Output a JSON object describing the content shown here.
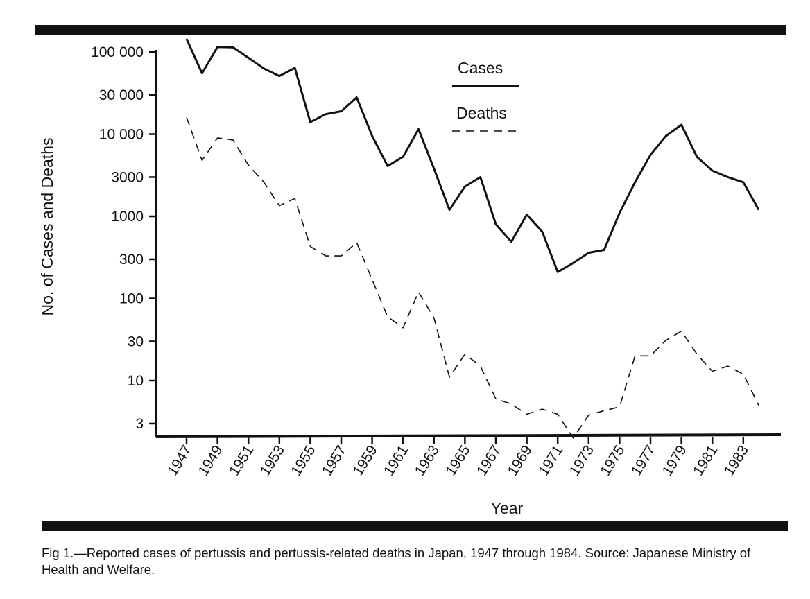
{
  "chart_data": {
    "type": "line",
    "yscale": "log",
    "ylim": [
      2,
      130000
    ],
    "xlabel": "Year",
    "ylabel": "No. of Cases and Deaths",
    "y_ticks": [
      {
        "value": 100000,
        "label": "100 000"
      },
      {
        "value": 30000,
        "label": "30 000"
      },
      {
        "value": 10000,
        "label": "10 000"
      },
      {
        "value": 3000,
        "label": "3000"
      },
      {
        "value": 1000,
        "label": "1000"
      },
      {
        "value": 300,
        "label": "300"
      },
      {
        "value": 100,
        "label": "100"
      },
      {
        "value": 30,
        "label": "30"
      },
      {
        "value": 10,
        "label": "10"
      },
      {
        "value": 3,
        "label": "3"
      }
    ],
    "x_ticks": [
      "1947",
      "1949",
      "1951",
      "1953",
      "1955",
      "1957",
      "1959",
      "1961",
      "1963",
      "1965",
      "1967",
      "1969",
      "1971",
      "1973",
      "1975",
      "1977",
      "1979",
      "1981",
      "1983"
    ],
    "x": [
      1947,
      1948,
      1949,
      1950,
      1951,
      1952,
      1953,
      1954,
      1955,
      1956,
      1957,
      1958,
      1959,
      1960,
      1961,
      1962,
      1963,
      1964,
      1965,
      1966,
      1967,
      1968,
      1969,
      1970,
      1971,
      1972,
      1973,
      1974,
      1975,
      1976,
      1977,
      1978,
      1979,
      1980,
      1981,
      1982,
      1983,
      1984
    ],
    "series": [
      {
        "name": "Cases",
        "style": "solid",
        "values": [
          152000,
          55000,
          115000,
          114000,
          85000,
          63000,
          51000,
          64000,
          14000,
          17500,
          19000,
          28000,
          9500,
          4100,
          5300,
          11500,
          3800,
          1200,
          2300,
          3000,
          800,
          490,
          1050,
          650,
          210,
          270,
          360,
          390,
          1100,
          2600,
          5600,
          9500,
          13000,
          5300,
          3600,
          3000,
          2600,
          1200
        ]
      },
      {
        "name": "Deaths",
        "style": "dashed",
        "values": [
          16000,
          4800,
          9000,
          8500,
          4200,
          2600,
          1350,
          1650,
          430,
          330,
          330,
          480,
          170,
          60,
          44,
          120,
          58,
          11,
          21,
          15,
          6,
          5.2,
          3.9,
          4.5,
          3.9,
          2,
          3.8,
          4.3,
          4.8,
          20,
          20,
          31,
          40,
          21,
          13,
          15,
          12,
          5
        ]
      }
    ],
    "legend": {
      "placement": "top-center",
      "entries": [
        "Cases",
        "Deaths"
      ]
    }
  },
  "caption": {
    "text": "Fig 1.—Reported cases of pertussis and pertussis-related deaths in Japan, 1947 through 1984. Source: Japanese Ministry of Health and Welfare."
  }
}
